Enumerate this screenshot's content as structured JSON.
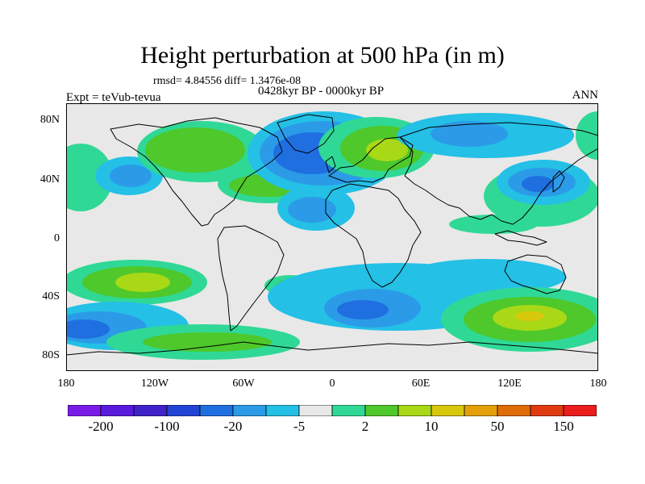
{
  "title": "Height perturbation at 500 hPa (in m)",
  "stats": "rmsd= 4.84556 diff= 1.3476e-08",
  "period": "0428kyr BP - 0000kyr BP",
  "experiment": "Expt = teVub-tevua",
  "season": "ANN",
  "lat_labels": [
    "80N",
    "40N",
    "0",
    "40S",
    "80S"
  ],
  "lon_labels": [
    "180",
    "120W",
    "60W",
    "0",
    "60E",
    "120E",
    "180"
  ],
  "colorbar": {
    "colors": [
      "#7a1ce8",
      "#5a1adc",
      "#3f22c8",
      "#2244d4",
      "#1f6fe0",
      "#2b9be8",
      "#24c0e6",
      "#e8e8e8",
      "#30d896",
      "#4ec82a",
      "#a8d816",
      "#d8c80c",
      "#e4a00a",
      "#e06c08",
      "#e03a10",
      "#ea1c1c"
    ],
    "labels": [
      "-200",
      "-100",
      "-20",
      "-5",
      "2",
      "10",
      "50",
      "150"
    ]
  },
  "palette": {
    "neg_strong": "#2244d4",
    "neg_mid": "#1f6fe0",
    "neg_weak": "#2b9be8",
    "neg_light": "#24c0e6",
    "neutral": "#e8e8e8",
    "pos_light": "#30d896",
    "pos_mid": "#4ec82a",
    "pos_strong": "#a8d816",
    "pos_max": "#d8c80c"
  }
}
